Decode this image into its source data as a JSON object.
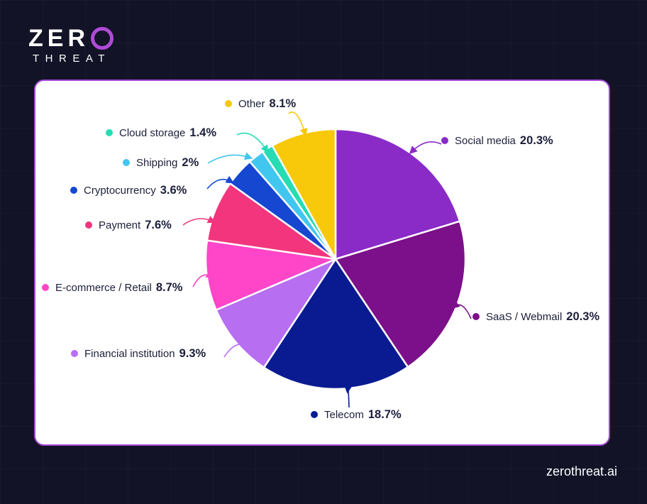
{
  "brand": {
    "logo_main": "ZER",
    "logo_sub": "THREAT",
    "site_url": "zerothreat.ai"
  },
  "chart_data": {
    "type": "pie",
    "slices": [
      {
        "label": "Social media",
        "value": 20.3,
        "display": "20.3%",
        "color": "#8a2bc7"
      },
      {
        "label": "SaaS / Webmail",
        "value": 20.3,
        "display": "20.3%",
        "color": "#7c0f8a"
      },
      {
        "label": "Telecom",
        "value": 18.7,
        "display": "18.7%",
        "color": "#0a1b91"
      },
      {
        "label": "Financial institution",
        "value": 9.3,
        "display": "9.3%",
        "color": "#b76ef0"
      },
      {
        "label": "E-commerce / Retail",
        "value": 8.7,
        "display": "8.7%",
        "color": "#ff45c8"
      },
      {
        "label": "Payment",
        "value": 7.6,
        "display": "7.6%",
        "color": "#f2357d"
      },
      {
        "label": "Cryptocurrency",
        "value": 3.6,
        "display": "3.6%",
        "color": "#1547d1"
      },
      {
        "label": "Shipping",
        "value": 2,
        "display": "2%",
        "color": "#41c6f0"
      },
      {
        "label": "Cloud storage",
        "value": 1.4,
        "display": "1.4%",
        "color": "#27dcb3"
      },
      {
        "label": "Other",
        "value": 8.1,
        "display": "8.1%",
        "color": "#f8c80a"
      }
    ]
  }
}
